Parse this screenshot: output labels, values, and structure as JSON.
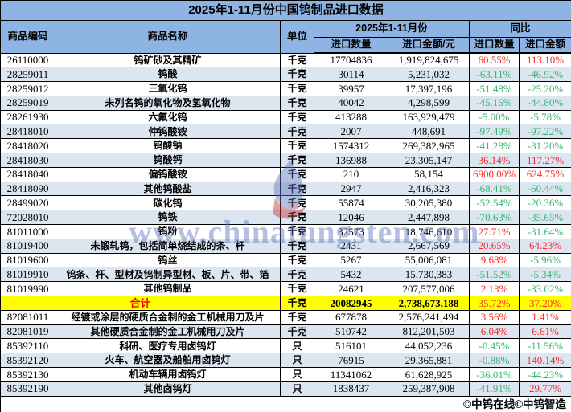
{
  "chart_data": {
    "type": "table",
    "title": "2025年1-11月份中国钨制品进口数据",
    "header": {
      "code": "商品编码",
      "name": "商品名称",
      "unit": "单位",
      "period_group": "2025年1-11月份",
      "yoy_group": "同比",
      "qty": "进口数量",
      "amount": "进口金额/元",
      "yoy_qty": "进口数量",
      "yoy_amount": "进口金额"
    },
    "rows": [
      {
        "code": "26110000",
        "name": "钨矿砂及其精矿",
        "unit": "千克",
        "qty": "17704836",
        "amount": "1,919,824,675",
        "yoy_qty": "60.55%",
        "yoy_amount": "113.10%"
      },
      {
        "code": "28259011",
        "name": "钨酸",
        "unit": "千克",
        "qty": "30114",
        "amount": "5,231,032",
        "yoy_qty": "-63.11%",
        "yoy_amount": "-46.92%"
      },
      {
        "code": "28259012",
        "name": "三氧化钨",
        "unit": "千克",
        "qty": "39957",
        "amount": "17,397,196",
        "yoy_qty": "-51.48%",
        "yoy_amount": "-25.20%"
      },
      {
        "code": "28259019",
        "name": "未列名钨的氧化物及氢氧化物",
        "unit": "千克",
        "qty": "40042",
        "amount": "4,298,599",
        "yoy_qty": "-45.16%",
        "yoy_amount": "-44.80%"
      },
      {
        "code": "28261930",
        "name": "六氟化钨",
        "unit": "千克",
        "qty": "413288",
        "amount": "163,929,479",
        "yoy_qty": "-5.00%",
        "yoy_amount": "-5.78%"
      },
      {
        "code": "28418010",
        "name": "仲钨酸铵",
        "unit": "千克",
        "qty": "2007",
        "amount": "448,691",
        "yoy_qty": "-97.49%",
        "yoy_amount": "-97.22%"
      },
      {
        "code": "28418020",
        "name": "钨酸钠",
        "unit": "千克",
        "qty": "1574312",
        "amount": "269,382,965",
        "yoy_qty": "-41.28%",
        "yoy_amount": "-31.20%"
      },
      {
        "code": "28418030",
        "name": "钨酸钙",
        "unit": "千克",
        "qty": "136988",
        "amount": "23,305,147",
        "yoy_qty": "36.14%",
        "yoy_amount": "117.27%"
      },
      {
        "code": "28418040",
        "name": "偏钨酸铵",
        "unit": "千克",
        "qty": "210",
        "amount": "58,154",
        "yoy_qty": "6900.00%",
        "yoy_amount": "624.75%"
      },
      {
        "code": "28418090",
        "name": "其他钨酸盐",
        "unit": "千克",
        "qty": "2947",
        "amount": "2,416,323",
        "yoy_qty": "-68.41%",
        "yoy_amount": "-60.44%"
      },
      {
        "code": "28499020",
        "name": "碳化钨",
        "unit": "千克",
        "qty": "55874",
        "amount": "30,205,380",
        "yoy_qty": "-52.54%",
        "yoy_amount": "-20.36%"
      },
      {
        "code": "72028010",
        "name": "钨铁",
        "unit": "千克",
        "qty": "12046",
        "amount": "2,447,898",
        "yoy_qty": "-70.63%",
        "yoy_amount": "-35.65%"
      },
      {
        "code": "81011000",
        "name": "钨粉",
        "unit": "千克",
        "qty": "32573",
        "amount": "18,746,610",
        "yoy_qty": "27.71%",
        "yoy_amount": "-31.64%"
      },
      {
        "code": "81019400",
        "name": "未锻轧钨，包括简单烧结成的条、杆",
        "unit": "千克",
        "qty": "2431",
        "amount": "2,667,569",
        "yoy_qty": "20.65%",
        "yoy_amount": "64.23%"
      },
      {
        "code": "81019600",
        "name": "钨丝",
        "unit": "千克",
        "qty": "5267",
        "amount": "55,006,081",
        "yoy_qty": "9.68%",
        "yoy_amount": "-5.96%"
      },
      {
        "code": "81019910",
        "name": "钨条、杆、型材及钨制异型材、板、片、带、箔",
        "unit": "千克",
        "qty": "5432",
        "amount": "15,730,383",
        "yoy_qty": "-51.52%",
        "yoy_amount": "-5.34%"
      },
      {
        "code": "81019990",
        "name": "其他钨制品",
        "unit": "千克",
        "qty": "24621",
        "amount": "207,577,006",
        "yoy_qty": "2.13%",
        "yoy_amount": "-33.02%"
      },
      {
        "total": true,
        "name": "合计",
        "unit": "千克",
        "qty": "20082945",
        "amount": "2,738,673,188",
        "yoy_qty": "35.72%",
        "yoy_amount": "37.20%"
      },
      {
        "code": "82081011",
        "name": "经镀或涂层的硬质合金制的金工机械用刀及片",
        "unit": "千克",
        "qty": "677878",
        "amount": "2,576,241,494",
        "yoy_qty": "3.56%",
        "yoy_amount": "1.41%"
      },
      {
        "code": "82081019",
        "name": "其他硬质合金制的金工机械用刀及片",
        "unit": "千克",
        "qty": "510742",
        "amount": "812,201,503",
        "yoy_qty": "6.04%",
        "yoy_amount": "6.61%"
      },
      {
        "code": "85392110",
        "name": "科研、医疗专用卤钨灯",
        "unit": "只",
        "qty": "516101",
        "amount": "44,052,236",
        "yoy_qty": "-0.45%",
        "yoy_amount": "-11.56%"
      },
      {
        "code": "85392120",
        "name": "火车、航空器及船舶用卤钨灯",
        "unit": "只",
        "qty": "76915",
        "amount": "29,365,881",
        "yoy_qty": "-0.88%",
        "yoy_amount": "140.14%"
      },
      {
        "code": "85392130",
        "name": "机动车辆用卤钨灯",
        "unit": "只",
        "qty": "11341062",
        "amount": "61,628,925",
        "yoy_qty": "-36.01%",
        "yoy_amount": "-44.23%"
      },
      {
        "code": "85392190",
        "name": "其他卤钨灯",
        "unit": "只",
        "qty": "1838437",
        "amount": "259,387,908",
        "yoy_qty": "-41.91%",
        "yoy_amount": "29.77%"
      }
    ]
  },
  "footer": {
    "credit": "©中钨在线©中钨智造"
  },
  "watermark": {
    "text": "www.chinatungsten.com"
  },
  "colors": {
    "header_bg": "#8DB4E2",
    "alt_row_bg": "#DCE6F1",
    "total_row_bg": "#FFFF00",
    "total_label": "#FF0000",
    "positive": "#FF2A2A",
    "negative": "#3CB371",
    "watermark_blue": "#5C74BE"
  }
}
